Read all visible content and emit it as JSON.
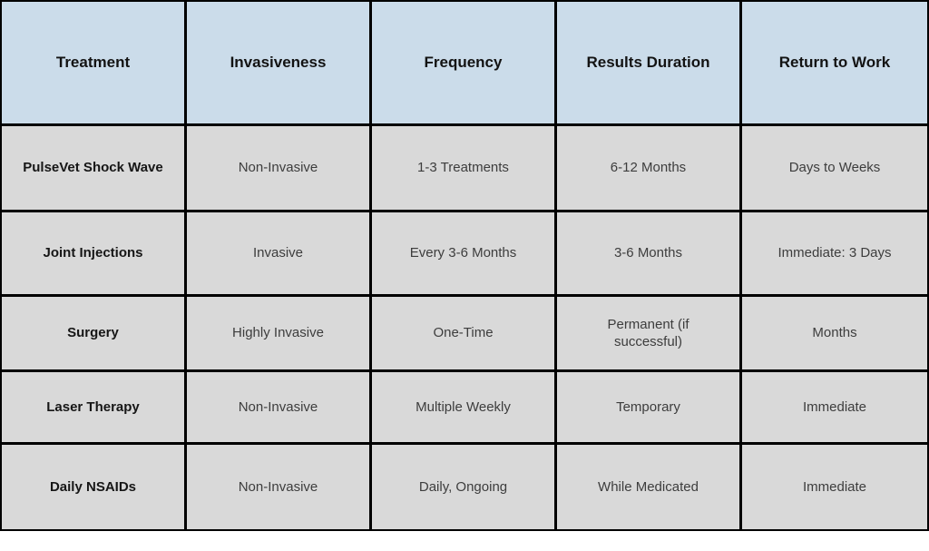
{
  "chart_data": {
    "type": "table",
    "columns": [
      "Treatment",
      "Invasiveness",
      "Frequency",
      "Results Duration",
      "Return to Work"
    ],
    "rows": [
      [
        "PulseVet Shock Wave",
        "Non-Invasive",
        "1-3 Treatments",
        "6-12 Months",
        "Days to Weeks"
      ],
      [
        "Joint Injections",
        "Invasive",
        "Every 3-6 Months",
        "3-6 Months",
        "Immediate: 3 Days"
      ],
      [
        "Surgery",
        "Highly Invasive",
        "One-Time",
        "Permanent (if successful)",
        "Months"
      ],
      [
        "Laser Therapy",
        "Non-Invasive",
        "Multiple Weekly",
        "Temporary",
        "Immediate"
      ],
      [
        "Daily NSAIDs",
        "Non-Invasive",
        "Daily, Ongoing",
        "While Medicated",
        "Immediate"
      ]
    ],
    "layout": {
      "legend": "none",
      "grid": "black cell borders",
      "header_position": "top"
    }
  },
  "colors": {
    "header_bg": "#cbdcea",
    "row_bg": "#d9d9d9",
    "border": "#000000",
    "header_text": "#131313",
    "row_label_text": "#161616",
    "body_text": "#3d3d3d"
  }
}
